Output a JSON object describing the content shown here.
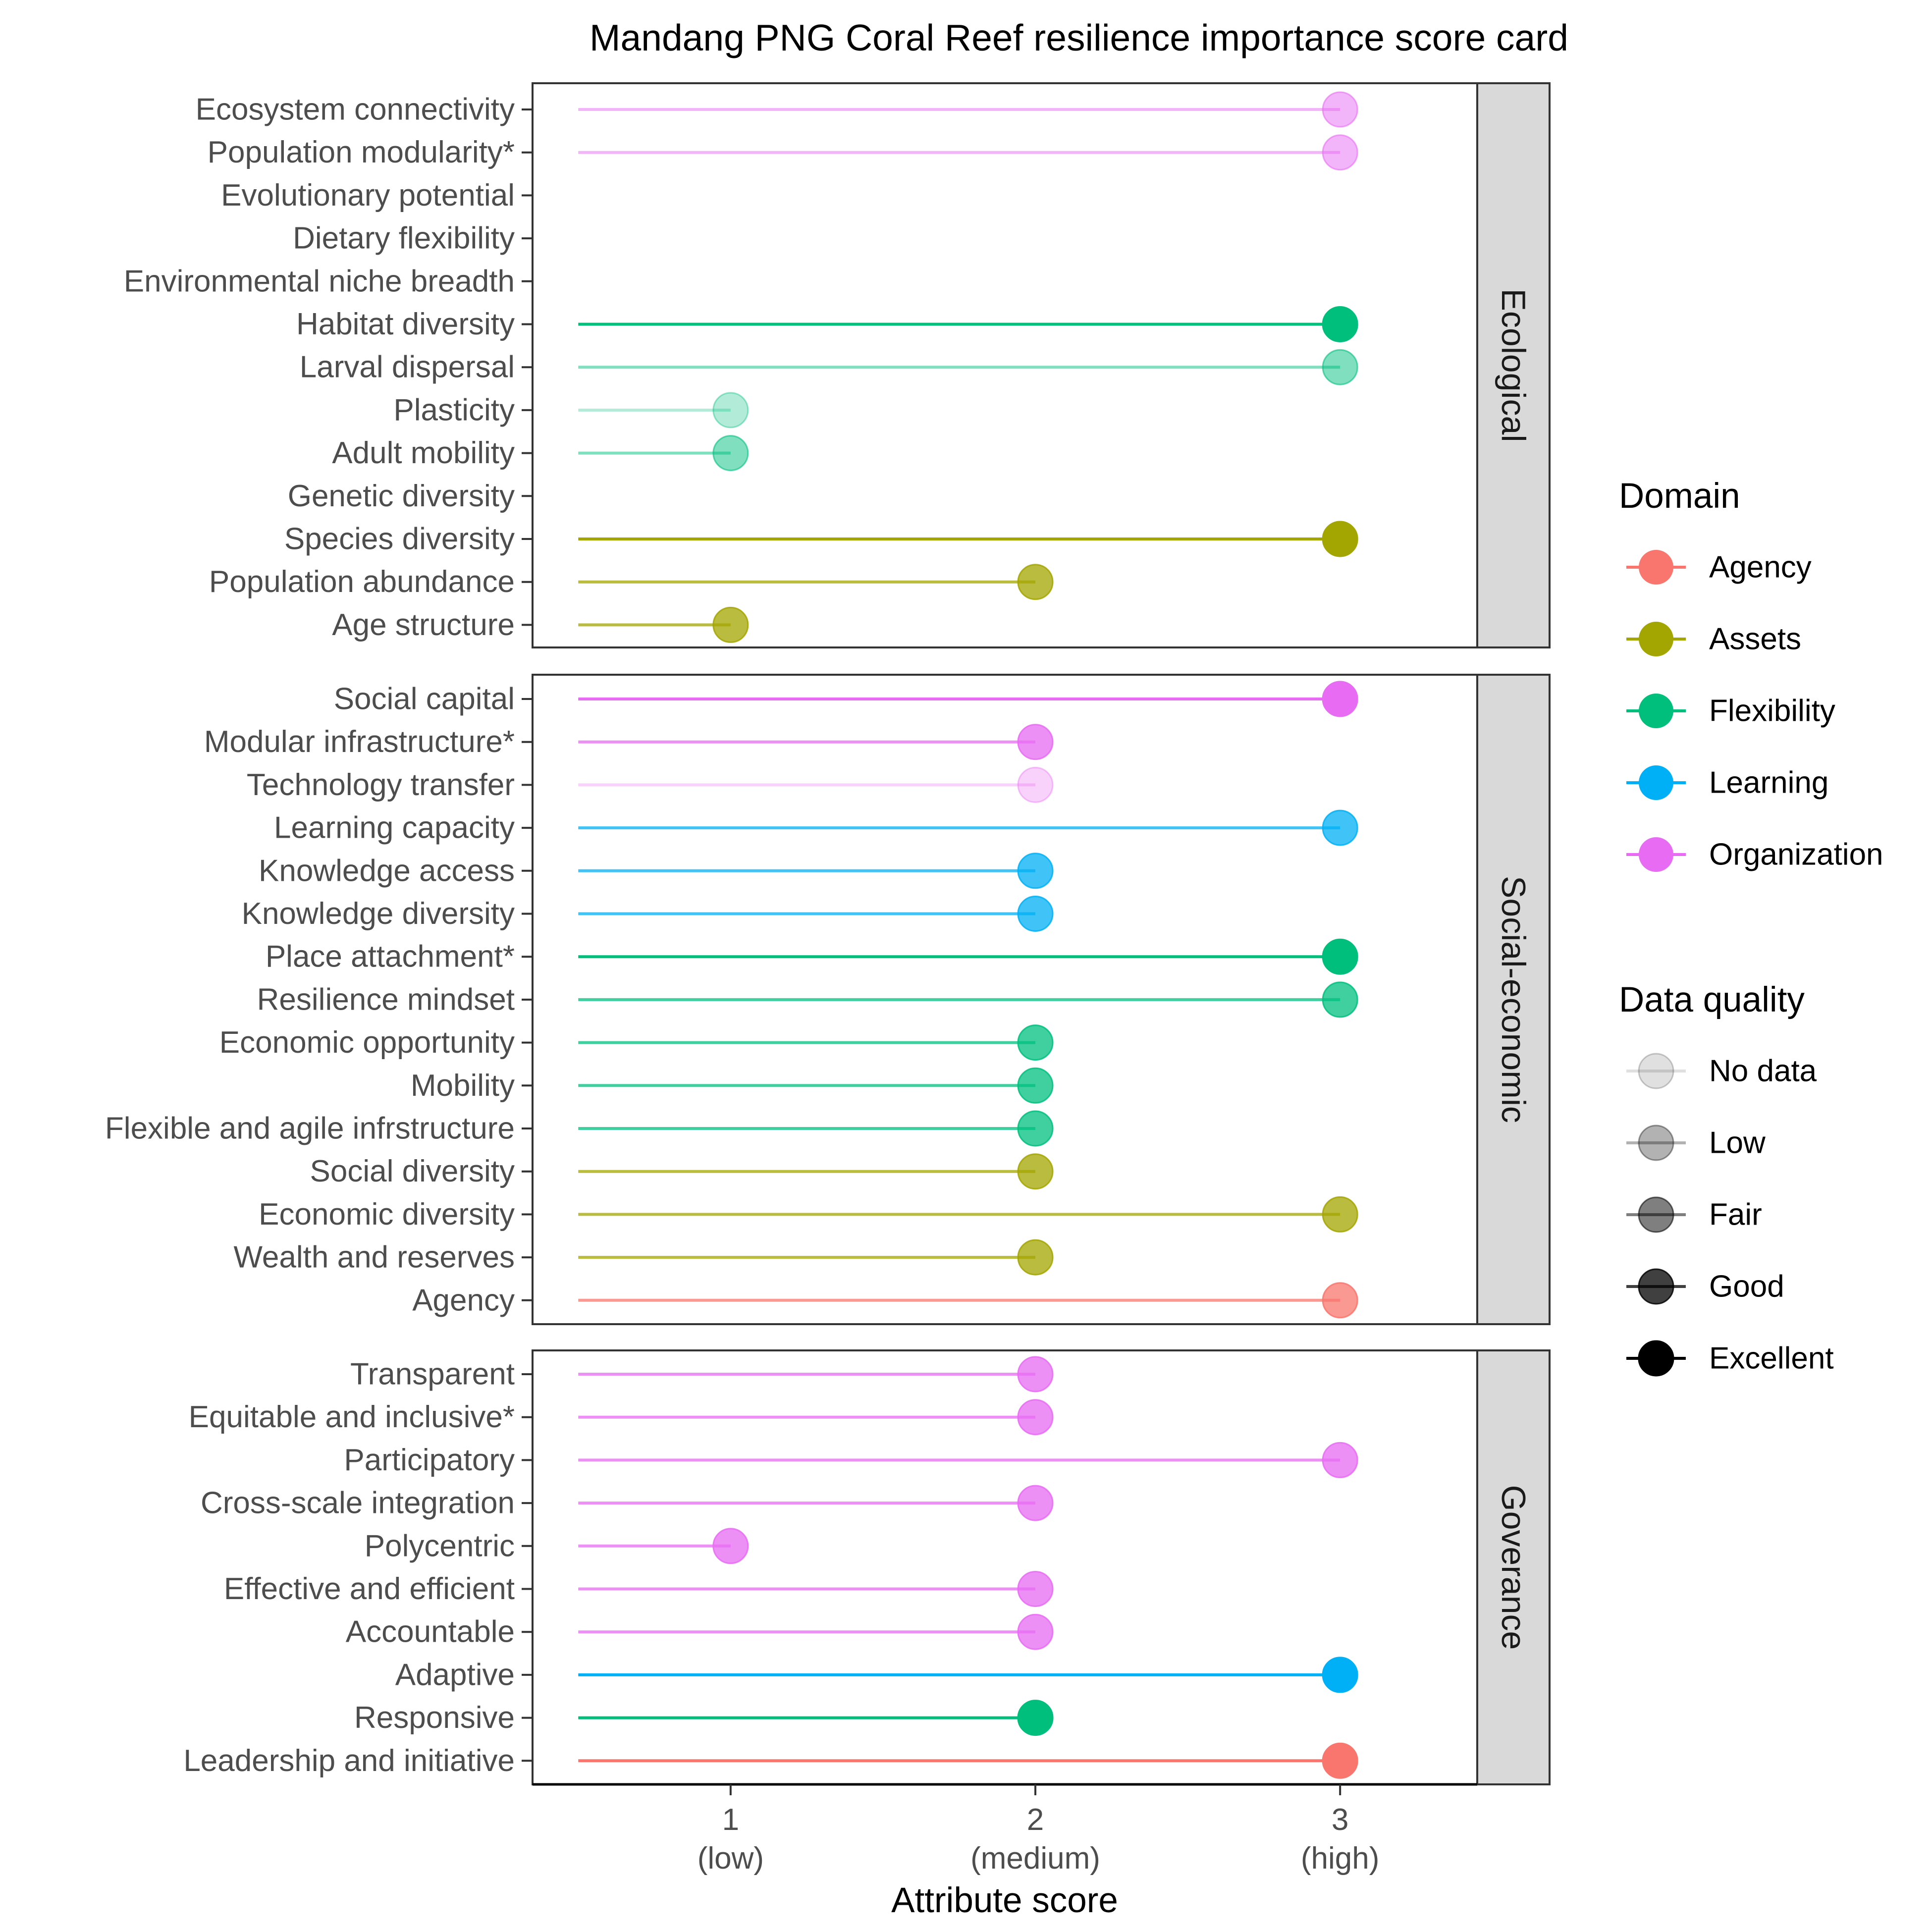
{
  "chart_data": {
    "type": "lollipop",
    "title": "Mandang PNG Coral Reef resilience importance score card",
    "xlabel": "Attribute score",
    "ylabel": "",
    "xlim": [
      0.35,
      3.45
    ],
    "x_ticks": [
      {
        "value": 1,
        "label": "1",
        "sublabel": "(low)"
      },
      {
        "value": 2,
        "label": "2",
        "sublabel": "(medium)"
      },
      {
        "value": 3,
        "label": "3",
        "sublabel": "(high)"
      }
    ],
    "lollipop_start": 0.5,
    "grid": false,
    "domain_colors": {
      "Agency": "#F8766D",
      "Assets": "#A3A500",
      "Flexibility": "#00BF7D",
      "Learning": "#00B0F6",
      "Organization": "#E76BF3"
    },
    "quality_alpha": {
      "No data": 0.12,
      "Low": 0.3,
      "Fair": 0.5,
      "Good": 0.75,
      "Excellent": 1.0
    },
    "legends": {
      "placement": "right",
      "domain": {
        "title": "Domain",
        "entries": [
          "Agency",
          "Assets",
          "Flexibility",
          "Learning",
          "Organization"
        ]
      },
      "quality": {
        "title": "Data quality",
        "entries": [
          "No data",
          "Low",
          "Fair",
          "Good",
          "Excellent"
        ]
      }
    },
    "facets": [
      {
        "name": "Ecological",
        "rows": [
          {
            "label": "Ecosystem connectivity",
            "domain": "Organization",
            "quality": "Fair",
            "score": 3
          },
          {
            "label": "Population modularity*",
            "domain": "Organization",
            "quality": "Fair",
            "score": 3
          },
          {
            "label": "Evolutionary potential",
            "domain": null,
            "quality": null,
            "score": null
          },
          {
            "label": "Dietary flexibility",
            "domain": null,
            "quality": null,
            "score": null
          },
          {
            "label": "Environmental niche breadth",
            "domain": null,
            "quality": null,
            "score": null
          },
          {
            "label": "Habitat diversity",
            "domain": "Flexibility",
            "quality": "Excellent",
            "score": 3
          },
          {
            "label": "Larval dispersal",
            "domain": "Flexibility",
            "quality": "Fair",
            "score": 3
          },
          {
            "label": "Plasticity",
            "domain": "Flexibility",
            "quality": "Low",
            "score": 1
          },
          {
            "label": "Adult mobility",
            "domain": "Flexibility",
            "quality": "Fair",
            "score": 1
          },
          {
            "label": "Genetic diversity",
            "domain": null,
            "quality": null,
            "score": null
          },
          {
            "label": "Species diversity",
            "domain": "Assets",
            "quality": "Excellent",
            "score": 3
          },
          {
            "label": "Population abundance",
            "domain": "Assets",
            "quality": "Good",
            "score": 2
          },
          {
            "label": "Age structure",
            "domain": "Assets",
            "quality": "Good",
            "score": 1
          }
        ]
      },
      {
        "name": "Social-economic",
        "rows": [
          {
            "label": "Social capital",
            "domain": "Organization",
            "quality": "Excellent",
            "score": 3
          },
          {
            "label": "Modular infrastructure*",
            "domain": "Organization",
            "quality": "Good",
            "score": 2
          },
          {
            "label": "Technology transfer",
            "domain": "Organization",
            "quality": "Low",
            "score": 2
          },
          {
            "label": "Learning capacity",
            "domain": "Learning",
            "quality": "Good",
            "score": 3
          },
          {
            "label": "Knowledge access",
            "domain": "Learning",
            "quality": "Good",
            "score": 2
          },
          {
            "label": "Knowledge diversity",
            "domain": "Learning",
            "quality": "Good",
            "score": 2
          },
          {
            "label": "Place attachment*",
            "domain": "Flexibility",
            "quality": "Excellent",
            "score": 3
          },
          {
            "label": "Resilience mindset",
            "domain": "Flexibility",
            "quality": "Good",
            "score": 3
          },
          {
            "label": "Economic opportunity",
            "domain": "Flexibility",
            "quality": "Good",
            "score": 2
          },
          {
            "label": "Mobility",
            "domain": "Flexibility",
            "quality": "Good",
            "score": 2
          },
          {
            "label": "Flexible and agile infrstructure",
            "domain": "Flexibility",
            "quality": "Good",
            "score": 2
          },
          {
            "label": "Social diversity",
            "domain": "Assets",
            "quality": "Good",
            "score": 2
          },
          {
            "label": "Economic diversity",
            "domain": "Assets",
            "quality": "Good",
            "score": 3
          },
          {
            "label": "Wealth and reserves",
            "domain": "Assets",
            "quality": "Good",
            "score": 2
          },
          {
            "label": "Agency",
            "domain": "Agency",
            "quality": "Good",
            "score": 3
          }
        ]
      },
      {
        "name": "Goverance",
        "rows": [
          {
            "label": "Transparent",
            "domain": "Organization",
            "quality": "Good",
            "score": 2
          },
          {
            "label": "Equitable and inclusive*",
            "domain": "Organization",
            "quality": "Good",
            "score": 2
          },
          {
            "label": "Participatory",
            "domain": "Organization",
            "quality": "Good",
            "score": 3
          },
          {
            "label": "Cross-scale integration",
            "domain": "Organization",
            "quality": "Good",
            "score": 2
          },
          {
            "label": "Polycentric",
            "domain": "Organization",
            "quality": "Good",
            "score": 1
          },
          {
            "label": "Effective and efficient",
            "domain": "Organization",
            "quality": "Good",
            "score": 2
          },
          {
            "label": "Accountable",
            "domain": "Organization",
            "quality": "Good",
            "score": 2
          },
          {
            "label": "Adaptive",
            "domain": "Learning",
            "quality": "Excellent",
            "score": 3
          },
          {
            "label": "Responsive",
            "domain": "Flexibility",
            "quality": "Excellent",
            "score": 2
          },
          {
            "label": "Leadership and initiative",
            "domain": "Agency",
            "quality": "Excellent",
            "score": 3
          }
        ]
      }
    ]
  }
}
